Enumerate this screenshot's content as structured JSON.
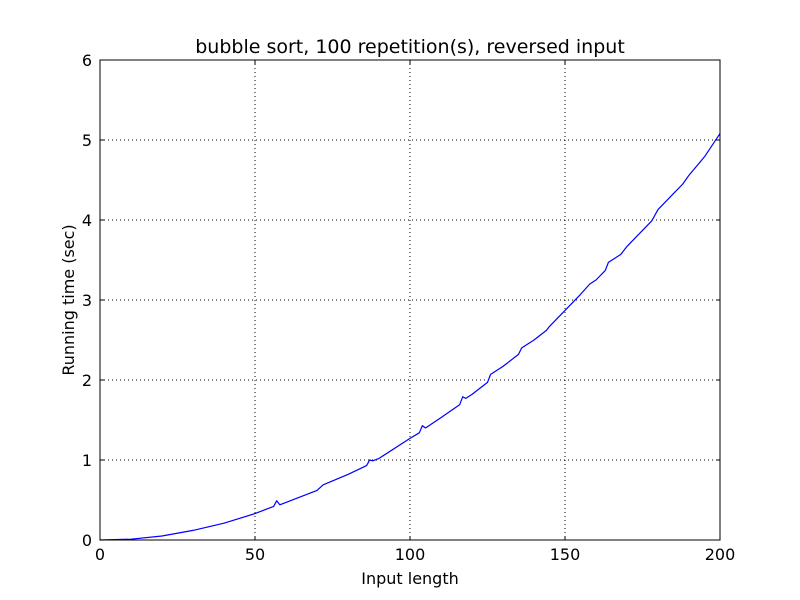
{
  "chart_data": {
    "type": "line",
    "title": "bubble sort, 100 repetition(s), reversed input",
    "xlabel": "Input length",
    "ylabel": "Running time (sec)",
    "xlim": [
      0,
      200
    ],
    "ylim": [
      0,
      6
    ],
    "x_ticks": [
      "0",
      "50",
      "100",
      "150",
      "200"
    ],
    "y_ticks": [
      "0",
      "1",
      "2",
      "3",
      "4",
      "5",
      "6"
    ],
    "grid": true,
    "line_color": "#0000ff",
    "series": [
      {
        "x": [
          0,
          10,
          20,
          30,
          40,
          50,
          56,
          57,
          58,
          60,
          70,
          72,
          80,
          86,
          87,
          88,
          90,
          100,
          103,
          104,
          105,
          110,
          116,
          117,
          118,
          120,
          125,
          126,
          130,
          135,
          136,
          140,
          144,
          145,
          150,
          155,
          158,
          160,
          163,
          164,
          168,
          170,
          175,
          178,
          180,
          185,
          188,
          190,
          195,
          200
        ],
        "y": [
          0,
          0.01,
          0.05,
          0.12,
          0.21,
          0.33,
          0.42,
          0.49,
          0.44,
          0.47,
          0.62,
          0.69,
          0.82,
          0.93,
          1.0,
          0.99,
          1.02,
          1.27,
          1.34,
          1.43,
          1.4,
          1.53,
          1.69,
          1.79,
          1.77,
          1.82,
          1.97,
          2.07,
          2.17,
          2.32,
          2.4,
          2.5,
          2.62,
          2.67,
          2.87,
          3.07,
          3.2,
          3.25,
          3.37,
          3.47,
          3.57,
          3.67,
          3.87,
          3.99,
          4.13,
          4.33,
          4.45,
          4.56,
          4.79,
          5.08
        ]
      }
    ]
  }
}
